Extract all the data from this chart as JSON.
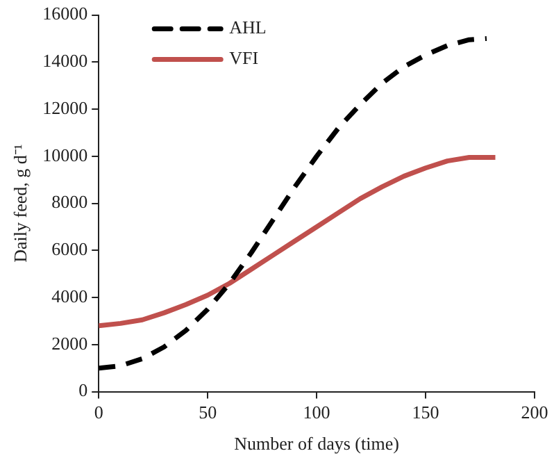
{
  "chart_data": {
    "type": "line",
    "xlabel": "Number of days (time)",
    "ylabel": "Daily feed, g d⁻¹",
    "xlim": [
      0,
      200
    ],
    "xticks": [
      0,
      50,
      100,
      150,
      200
    ],
    "ylim": [
      0,
      16000
    ],
    "yticks": [
      0,
      2000,
      4000,
      6000,
      8000,
      10000,
      12000,
      14000,
      16000
    ],
    "grid": false,
    "legend": "top left",
    "marker": "none",
    "series": [
      {
        "name": "AHL",
        "color": "#000000",
        "line_style": "dashed",
        "x": [
          0,
          10,
          20,
          30,
          40,
          50,
          60,
          70,
          80,
          90,
          100,
          110,
          120,
          130,
          140,
          150,
          160,
          170,
          178
        ],
        "values": [
          1000,
          1100,
          1400,
          1900,
          2600,
          3500,
          4600,
          5900,
          7300,
          8700,
          10000,
          11200,
          12200,
          13100,
          13800,
          14300,
          14700,
          14950,
          15000
        ]
      },
      {
        "name": "VFI",
        "color": "#c0504d",
        "line_style": "solid",
        "x": [
          0,
          10,
          20,
          30,
          40,
          50,
          60,
          70,
          80,
          90,
          100,
          110,
          120,
          130,
          140,
          150,
          160,
          170,
          182
        ],
        "values": [
          2800,
          2900,
          3050,
          3350,
          3700,
          4100,
          4600,
          5200,
          5800,
          6400,
          7000,
          7600,
          8200,
          8700,
          9150,
          9500,
          9800,
          9950,
          9950
        ]
      }
    ]
  }
}
